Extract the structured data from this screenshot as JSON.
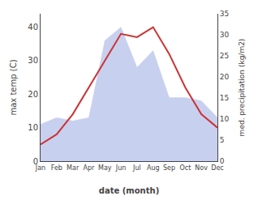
{
  "chart_data": {
    "type": "line",
    "categories": [
      "Jan",
      "Feb",
      "Mar",
      "Apr",
      "May",
      "Jun",
      "Jul",
      "Aug",
      "Sep",
      "Oct",
      "Nov",
      "Dec"
    ],
    "xlabel": "date (month)",
    "ylabel": "max temp (C)",
    "y2label": "med. precipitation (kg/m2)",
    "series": [
      {
        "type": "area",
        "color": "#c8d0f0",
        "values": [
          11,
          13,
          12,
          13,
          36,
          40,
          28,
          33,
          19,
          19,
          18,
          13
        ]
      },
      {
        "type": "line",
        "color": "#cc3333",
        "values": [
          5,
          8,
          14,
          22,
          30,
          38,
          37,
          40,
          32,
          22,
          14,
          10
        ]
      }
    ],
    "ylim": [
      0,
      44
    ],
    "yticks": [
      0,
      10,
      20,
      30,
      40
    ],
    "y2lim": [
      0,
      35
    ],
    "y2ticks": [
      0,
      5,
      10,
      15,
      20,
      25,
      30,
      35
    ],
    "grid": false
  }
}
